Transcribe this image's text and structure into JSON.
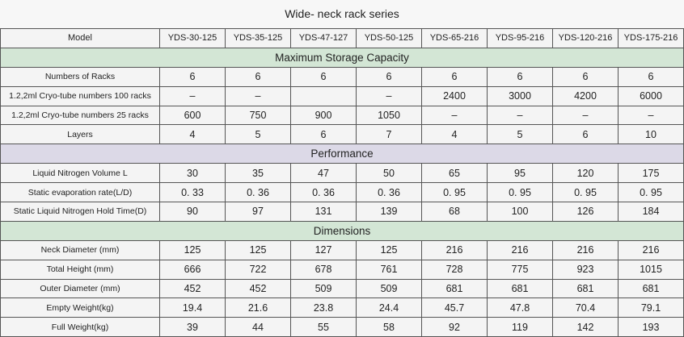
{
  "title": "Wide- neck rack series",
  "table": {
    "header": [
      "Model",
      "YDS-30-125",
      "YDS-35-125",
      "YDS-47-127",
      "YDS-50-125",
      "YDS-65-216",
      "YDS-95-216",
      "YDS-120-216",
      "YDS-175-216"
    ],
    "sections": [
      {
        "title": "Maximum Storage Capacity",
        "color": "#d3e6d5",
        "rows": [
          {
            "label": "Numbers of Racks",
            "cells": [
              6,
              6,
              6,
              6,
              6,
              6,
              6,
              6
            ]
          },
          {
            "label": "1.2,2ml Cryo-tube numbers  100 racks",
            "cells": [
              "–",
              "–",
              null,
              "–",
              2400,
              3000,
              4200,
              6000
            ]
          },
          {
            "label": "1.2,2ml Cryo-tube numbers  25 racks",
            "cells": [
              600,
              750,
              900,
              1050,
              "–",
              "–",
              "–",
              "–"
            ]
          },
          {
            "label": "Layers",
            "cells": [
              4,
              5,
              6,
              7,
              4,
              5,
              6,
              10
            ]
          }
        ]
      },
      {
        "title": "Performance",
        "color": "#dcd9e7",
        "rows": [
          {
            "label": "Liquid Nitrogen Volume L",
            "cells": [
              30,
              35,
              47,
              50,
              65,
              95,
              120,
              175
            ]
          },
          {
            "label": "Static evaporation rate(L/D)",
            "cells": [
              "0. 33",
              "0. 36",
              "0. 36",
              "0. 36",
              "0. 95",
              "0. 95",
              "0. 95",
              "0. 95"
            ]
          },
          {
            "label": "Static Liquid Nitrogen Hold Time(D)",
            "cells": [
              90,
              97,
              131,
              139,
              68,
              100,
              126,
              184
            ]
          }
        ]
      },
      {
        "title": "Dimensions",
        "color": "#d3e6d5",
        "rows": [
          {
            "label": "Neck Diameter (mm)",
            "cells": [
              125,
              125,
              127,
              125,
              216,
              216,
              216,
              216
            ]
          },
          {
            "label": "Total Height (mm)",
            "cells": [
              666,
              722,
              678,
              761,
              728,
              775,
              923,
              1015
            ]
          },
          {
            "label": "Outer Diameter (mm)",
            "cells": [
              452,
              452,
              509,
              509,
              681,
              681,
              681,
              681
            ]
          },
          {
            "label": "Empty Weight(kg)",
            "cells": [
              19.4,
              21.6,
              23.8,
              24.4,
              45.7,
              47.8,
              70.4,
              79.1
            ]
          },
          {
            "label": "Full Weight(kg)",
            "cells": [
              39,
              44,
              55,
              58,
              92,
              119,
              142,
              193
            ]
          }
        ]
      }
    ]
  }
}
